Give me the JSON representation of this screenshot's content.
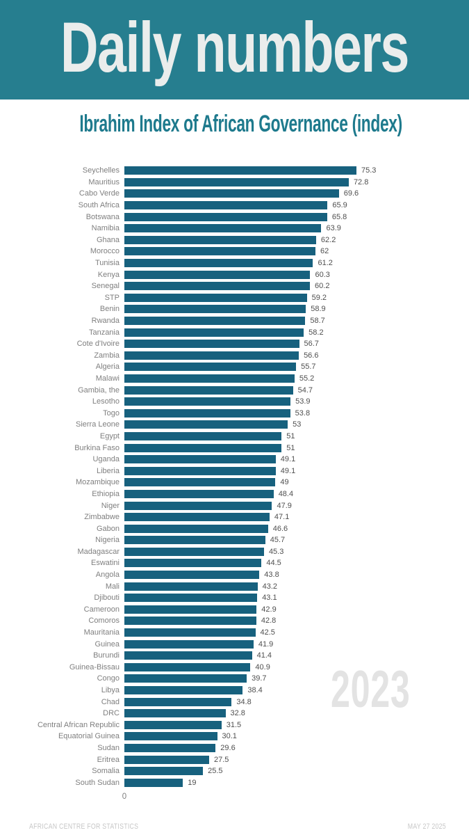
{
  "header": {
    "title": "Daily numbers",
    "background": "#267e8f",
    "text_color": "#eaedec"
  },
  "subtitle": {
    "text": "Ibrahim Index of African Governance (index)",
    "color": "#1e7a8d"
  },
  "watermark": {
    "text": "2023",
    "color": "#e3e3e3"
  },
  "footer": {
    "left": "AFRICAN CENTRE FOR STATISTICS",
    "right": "MAY 27 2025",
    "color": "#c7c7c7"
  },
  "chart_data": {
    "type": "bar",
    "orientation": "horizontal",
    "title": "Ibrahim Index of African Governance (index)",
    "categories": [
      "Seychelles",
      "Mauritius",
      "Cabo Verde",
      "South Africa",
      "Botswana",
      "Namibia",
      "Ghana",
      "Morocco",
      "Tunisia",
      "Kenya",
      "Senegal",
      "STP",
      "Benin",
      "Rwanda",
      "Tanzania",
      "Cote d'Ivoire",
      "Zambia",
      "Algeria",
      "Malawi",
      "Gambia, the",
      "Lesotho",
      "Togo",
      "Sierra Leone",
      "Egypt",
      "Burkina Faso",
      "Uganda",
      "Liberia",
      "Mozambique",
      "Ethiopia",
      "Niger",
      "Zimbabwe",
      "Gabon",
      "Nigeria",
      "Madagascar",
      "Eswatini",
      "Angola",
      "Mali",
      "Djibouti",
      "Cameroon",
      "Comoros",
      "Mauritania",
      "Guinea",
      "Burundi",
      "Guinea-Bissau",
      "Congo",
      "Libya",
      "Chad",
      "DRC",
      "Central African Republic",
      "Equatorial Guinea",
      "Sudan",
      "Eritrea",
      "Somalia",
      "South Sudan"
    ],
    "values": [
      75.3,
      72.8,
      69.6,
      65.9,
      65.8,
      63.9,
      62.2,
      62,
      61.2,
      60.3,
      60.2,
      59.2,
      58.9,
      58.7,
      58.2,
      56.7,
      56.6,
      55.7,
      55.2,
      54.7,
      53.9,
      53.8,
      53,
      51,
      51,
      49.1,
      49.1,
      49,
      48.4,
      47.9,
      47.1,
      46.6,
      45.7,
      45.3,
      44.5,
      43.8,
      43.2,
      43.1,
      42.9,
      42.8,
      42.5,
      41.9,
      41.4,
      40.9,
      39.7,
      38.4,
      34.8,
      32.8,
      31.5,
      30.1,
      29.6,
      27.5,
      25.5,
      19
    ],
    "xlim": [
      0,
      80
    ],
    "x_axis_tick": "0",
    "bar_color": "#17617e",
    "label_color": "#7f7f7f",
    "value_color": "#4f4f4f",
    "grid": false,
    "legend": false
  }
}
